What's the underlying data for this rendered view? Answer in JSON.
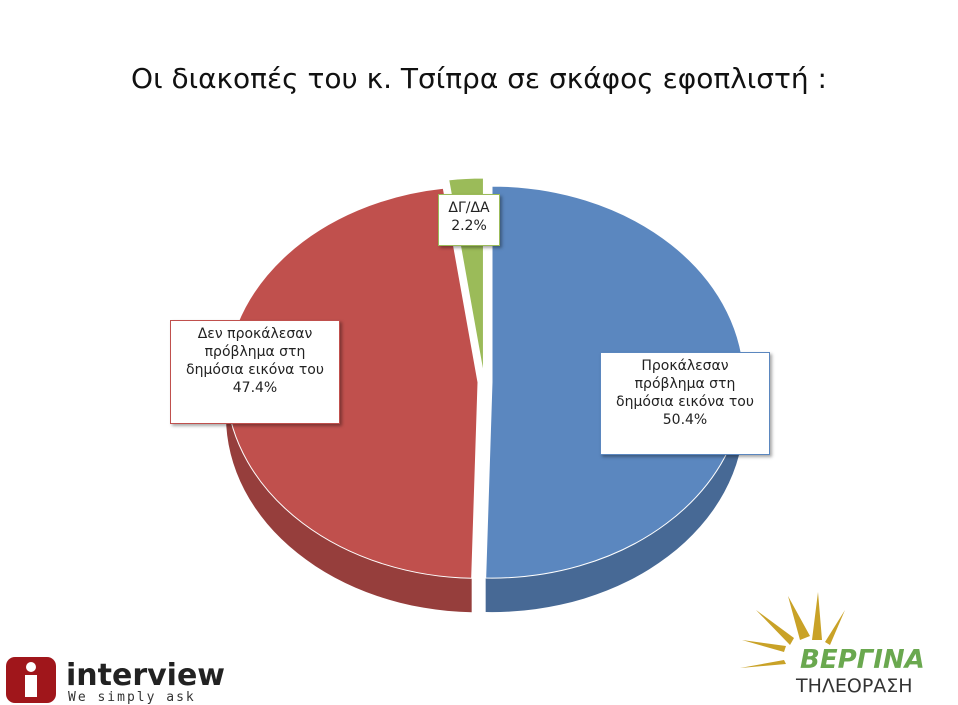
{
  "chart_data": {
    "type": "pie",
    "title": "Οι διακοπές του κ. Τσίπρα σε σκάφος εφοπλιστή :",
    "categories": [
      "Προκάλεσαν πρόβλημα στη δημόσια εικόνα του",
      "Δεν προκάλεσαν πρόβλημα στη δημόσια εικόνα του",
      "ΔΓ/ΔΑ"
    ],
    "values": [
      50.4,
      47.4,
      2.2
    ],
    "value_labels": [
      "50.4%",
      "47.4%",
      "2.2%"
    ],
    "colors": [
      "#5b87bf",
      "#c0504d",
      "#9bbb59"
    ]
  },
  "logos": {
    "interview": {
      "name": "interview",
      "tagline": "We simply ask"
    },
    "vergina": {
      "name": "ΒΕΡΓΙΝΑ",
      "tagline": "ΤΗΛΕΟΡΑΣΗ"
    }
  }
}
